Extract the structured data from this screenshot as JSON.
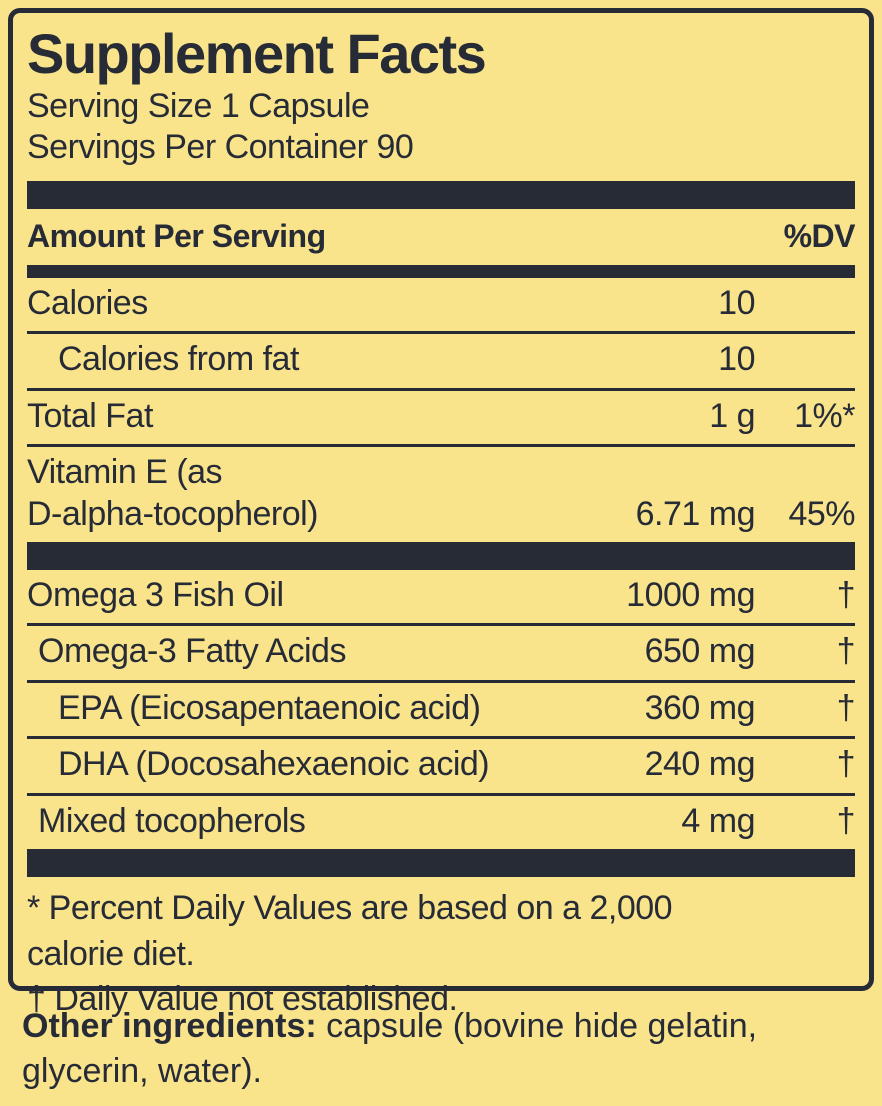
{
  "colors": {
    "background": "#f9e48c",
    "ink": "#262b36"
  },
  "panel": {
    "title": "Supplement Facts",
    "serving_size": "Serving Size 1 Capsule",
    "servings_per_container": "Servings Per Container 90",
    "amount_header": "Amount Per Serving",
    "dv_header": "%DV"
  },
  "rows": [
    {
      "label": "Calories",
      "amount": "10",
      "dv": ""
    },
    {
      "label": "Calories from fat",
      "amount": "10",
      "dv": ""
    },
    {
      "label": "Total Fat",
      "amount": "1 g",
      "dv": "1%*"
    },
    {
      "label": "Vitamin E (as\nD-alpha-tocopherol)",
      "amount": "6.71 mg",
      "dv": "45%"
    },
    {
      "label": "Omega 3 Fish Oil",
      "amount": "1000 mg",
      "dv": "†"
    },
    {
      "label": "Omega-3 Fatty Acids",
      "amount": "650 mg",
      "dv": "†"
    },
    {
      "label": "EPA (Eicosapentaenoic acid)",
      "amount": "360 mg",
      "dv": "†"
    },
    {
      "label": "DHA (Docosahexaenoic acid)",
      "amount": "240 mg",
      "dv": "†"
    },
    {
      "label": "Mixed tocopherols",
      "amount": "4 mg",
      "dv": "†"
    }
  ],
  "footnotes": [
    "* Percent Daily Values are based on a 2,000\ncalorie diet.",
    "† Daily Value not established."
  ],
  "other_ingredients": {
    "label": "Other ingredients:",
    "text": " capsule (bovine hide gelatin, glycerin, water)."
  }
}
